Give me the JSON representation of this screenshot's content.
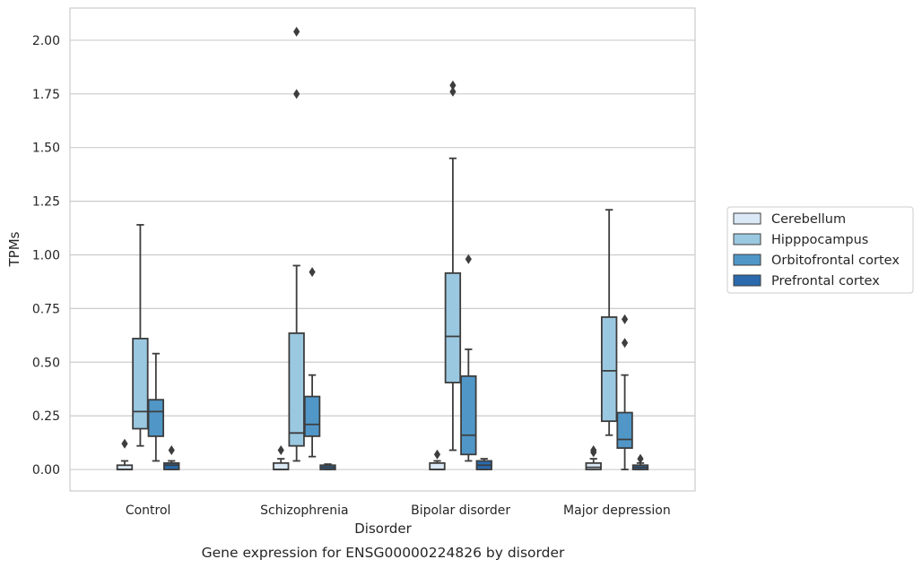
{
  "caption": "Gene expression for ENSG00000224826 by disorder",
  "chart_data": {
    "type": "box",
    "title": "",
    "xlabel": "Disorder",
    "ylabel": "TPMs",
    "ylim": [
      -0.1,
      2.15
    ],
    "yticks": [
      "0.00",
      "0.25",
      "0.50",
      "0.75",
      "1.00",
      "1.25",
      "1.50",
      "1.75",
      "2.00"
    ],
    "grid": "horizontal",
    "legend_position": "right",
    "categories": [
      "Control",
      "Schizophrenia",
      "Bipolar disorder",
      "Major depression"
    ],
    "series": [
      {
        "name": "Cerebellum",
        "color": "#dbe9f6",
        "boxes": [
          {
            "q1": 0.0,
            "median": 0.0,
            "q3": 0.02,
            "whislo": 0.0,
            "whishi": 0.04,
            "fliers": [
              0.12
            ]
          },
          {
            "q1": 0.0,
            "median": 0.0,
            "q3": 0.03,
            "whislo": 0.0,
            "whishi": 0.05,
            "fliers": [
              0.09
            ]
          },
          {
            "q1": 0.0,
            "median": 0.0,
            "q3": 0.03,
            "whislo": 0.0,
            "whishi": 0.04,
            "fliers": [
              0.07
            ]
          },
          {
            "q1": 0.0,
            "median": 0.01,
            "q3": 0.03,
            "whislo": 0.0,
            "whishi": 0.05,
            "fliers": [
              0.08,
              0.09
            ]
          }
        ]
      },
      {
        "name": "Hipppocampus",
        "color": "#9ac8e0",
        "boxes": [
          {
            "q1": 0.19,
            "median": 0.27,
            "q3": 0.61,
            "whislo": 0.11,
            "whishi": 1.14,
            "fliers": []
          },
          {
            "q1": 0.11,
            "median": 0.17,
            "q3": 0.635,
            "whislo": 0.04,
            "whishi": 0.95,
            "fliers": [
              1.75,
              2.04
            ]
          },
          {
            "q1": 0.405,
            "median": 0.62,
            "q3": 0.915,
            "whislo": 0.09,
            "whishi": 1.45,
            "fliers": [
              1.76,
              1.79
            ]
          },
          {
            "q1": 0.225,
            "median": 0.46,
            "q3": 0.71,
            "whislo": 0.16,
            "whishi": 1.21,
            "fliers": []
          }
        ]
      },
      {
        "name": "Orbitofrontal cortex",
        "color": "#5097c8",
        "boxes": [
          {
            "q1": 0.155,
            "median": 0.27,
            "q3": 0.325,
            "whislo": 0.04,
            "whishi": 0.54,
            "fliers": []
          },
          {
            "q1": 0.155,
            "median": 0.21,
            "q3": 0.34,
            "whislo": 0.06,
            "whishi": 0.44,
            "fliers": [
              0.92
            ]
          },
          {
            "q1": 0.07,
            "median": 0.16,
            "q3": 0.435,
            "whislo": 0.04,
            "whishi": 0.56,
            "fliers": [
              0.98
            ]
          },
          {
            "q1": 0.1,
            "median": 0.14,
            "q3": 0.265,
            "whislo": 0.0,
            "whishi": 0.44,
            "fliers": [
              0.59,
              0.7
            ]
          }
        ]
      },
      {
        "name": "Prefrontal cortex",
        "color": "#2a6aad",
        "boxes": [
          {
            "q1": 0.0,
            "median": 0.02,
            "q3": 0.03,
            "whislo": 0.0,
            "whishi": 0.04,
            "fliers": [
              0.09
            ]
          },
          {
            "q1": 0.0,
            "median": 0.01,
            "q3": 0.02,
            "whislo": 0.0,
            "whishi": 0.025,
            "fliers": []
          },
          {
            "q1": 0.0,
            "median": 0.02,
            "q3": 0.04,
            "whislo": 0.0,
            "whishi": 0.05,
            "fliers": []
          },
          {
            "q1": 0.0,
            "median": 0.01,
            "q3": 0.02,
            "whislo": 0.0,
            "whishi": 0.03,
            "fliers": [
              0.05
            ]
          }
        ]
      }
    ]
  }
}
